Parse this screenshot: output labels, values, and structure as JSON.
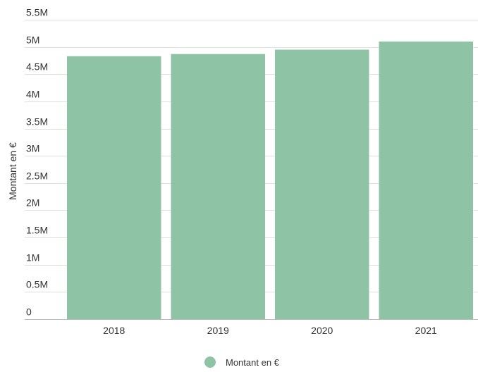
{
  "chart_data": {
    "type": "bar",
    "categories": [
      "2018",
      "2019",
      "2020",
      "2021"
    ],
    "values": [
      4830000,
      4870000,
      4950000,
      5100000
    ],
    "series": [
      {
        "name": "Montant en €",
        "values": [
          4830000,
          4870000,
          4950000,
          5100000
        ],
        "color": "#8fc3a6"
      }
    ],
    "xlabel": "",
    "ylabel": "Montant en €",
    "ylim": [
      0,
      5500000
    ],
    "yticks": [
      "0",
      "0.5M",
      "1M",
      "1.5M",
      "2M",
      "2.5M",
      "3M",
      "3.5M",
      "4M",
      "4.5M",
      "5M",
      "5.5M"
    ],
    "ytick_values": [
      0,
      500000,
      1000000,
      1500000,
      2000000,
      2500000,
      3000000,
      3500000,
      4000000,
      4500000,
      5000000,
      5500000
    ],
    "grid": true,
    "legend_position": "bottom-center",
    "colors": {
      "bar": "#8fc3a6",
      "grid": "#e0e0e0",
      "axis_text": "#333333"
    }
  }
}
